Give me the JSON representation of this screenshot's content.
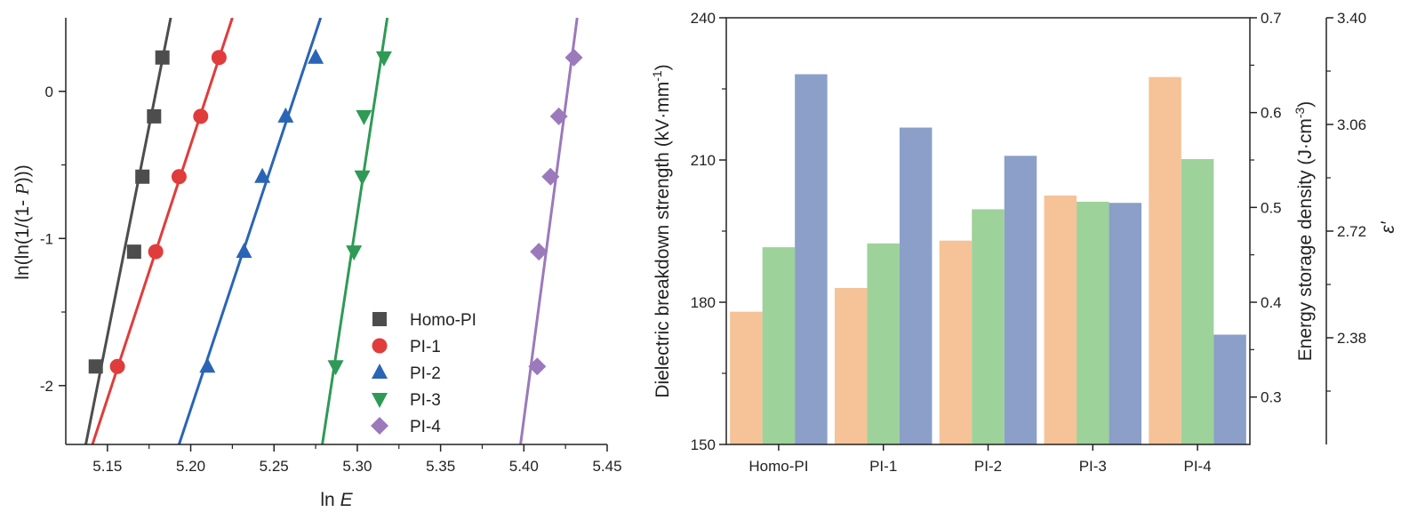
{
  "chart_data": [
    {
      "type": "scatter",
      "xlabel_prefix": "ln ",
      "xlabel_var": "E",
      "ylabel_pre": "ln(ln(1/(1- ",
      "ylabel_var": "P",
      "ylabel_post": ")))",
      "xlim": [
        5.125,
        5.45
      ],
      "ylim": [
        -2.4,
        0.5
      ],
      "xticks": [
        "5.15",
        "5.20",
        "5.25",
        "5.30",
        "5.35",
        "5.40",
        "5.45"
      ],
      "yticks": [
        "0",
        "-1",
        "-2"
      ],
      "legend_position": "bottom-right",
      "series": [
        {
          "name": "Homo-PI",
          "marker": "square",
          "color": "#4d4d4d",
          "points": [
            [
              5.143,
              -1.87
            ],
            [
              5.166,
              -1.09
            ],
            [
              5.171,
              -0.58
            ],
            [
              5.178,
              -0.17
            ],
            [
              5.183,
              0.23
            ]
          ],
          "fit": [
            [
              5.137,
              -2.4
            ],
            [
              5.188,
              0.5
            ]
          ]
        },
        {
          "name": "PI-1",
          "marker": "circle",
          "color": "#e03c3c",
          "points": [
            [
              5.156,
              -1.87
            ],
            [
              5.179,
              -1.09
            ],
            [
              5.193,
              -0.58
            ],
            [
              5.206,
              -0.17
            ],
            [
              5.217,
              0.23
            ]
          ],
          "fit": [
            [
              5.141,
              -2.4
            ],
            [
              5.225,
              0.5
            ]
          ]
        },
        {
          "name": "PI-2",
          "marker": "triangle-up",
          "color": "#2a65b5",
          "points": [
            [
              5.21,
              -1.87
            ],
            [
              5.232,
              -1.09
            ],
            [
              5.243,
              -0.58
            ],
            [
              5.257,
              -0.17
            ],
            [
              5.275,
              0.23
            ]
          ],
          "fit": [
            [
              5.193,
              -2.4
            ],
            [
              5.278,
              0.5
            ]
          ]
        },
        {
          "name": "PI-3",
          "marker": "triangle-down",
          "color": "#2f9a56",
          "points": [
            [
              5.287,
              -1.87
            ],
            [
              5.298,
              -1.09
            ],
            [
              5.303,
              -0.58
            ],
            [
              5.304,
              -0.17
            ],
            [
              5.316,
              0.23
            ]
          ],
          "fit": [
            [
              5.279,
              -2.4
            ],
            [
              5.318,
              0.5
            ]
          ]
        },
        {
          "name": "PI-4",
          "marker": "diamond",
          "color": "#9b79bb",
          "points": [
            [
              5.408,
              -1.87
            ],
            [
              5.409,
              -1.09
            ],
            [
              5.416,
              -0.58
            ],
            [
              5.421,
              -0.17
            ],
            [
              5.43,
              0.23
            ]
          ],
          "fit": [
            [
              5.398,
              -2.4
            ],
            [
              5.432,
              0.5
            ]
          ]
        }
      ]
    },
    {
      "type": "bar",
      "categories": [
        "Homo-PI",
        "PI-1",
        "PI-2",
        "PI-3",
        "PI-4"
      ],
      "left_axis": {
        "label": "Dielectric breakdown strength (kV·mm",
        "label_sup": "-1",
        "label_end": ")",
        "ylim": [
          150,
          240
        ],
        "ticks": [
          "150",
          "180",
          "210",
          "240"
        ]
      },
      "right_axis": {
        "label": "Energy storage density (J·cm",
        "label_sup": "-3",
        "label_end": ")",
        "ylim": [
          0.25,
          0.7
        ],
        "ticks": [
          "0.3",
          "0.4",
          "0.5",
          "0.6",
          "0.7"
        ]
      },
      "outer_axis": {
        "label": "ε′",
        "ylim": [
          2.04,
          3.4
        ],
        "ticks": [
          "2.38",
          "2.72",
          "3.06",
          "3.40"
        ]
      },
      "series": [
        {
          "color": "#f5c397",
          "axis": "left",
          "values": [
            178,
            183,
            193,
            202.5,
            227.5
          ]
        },
        {
          "color": "#9dd29a",
          "axis": "right",
          "values": [
            0.458,
            0.462,
            0.498,
            0.506,
            0.551
          ]
        },
        {
          "color": "#8b9fc8",
          "axis": "outer",
          "values": [
            3.22,
            3.05,
            2.96,
            2.81,
            2.39
          ]
        }
      ]
    }
  ]
}
